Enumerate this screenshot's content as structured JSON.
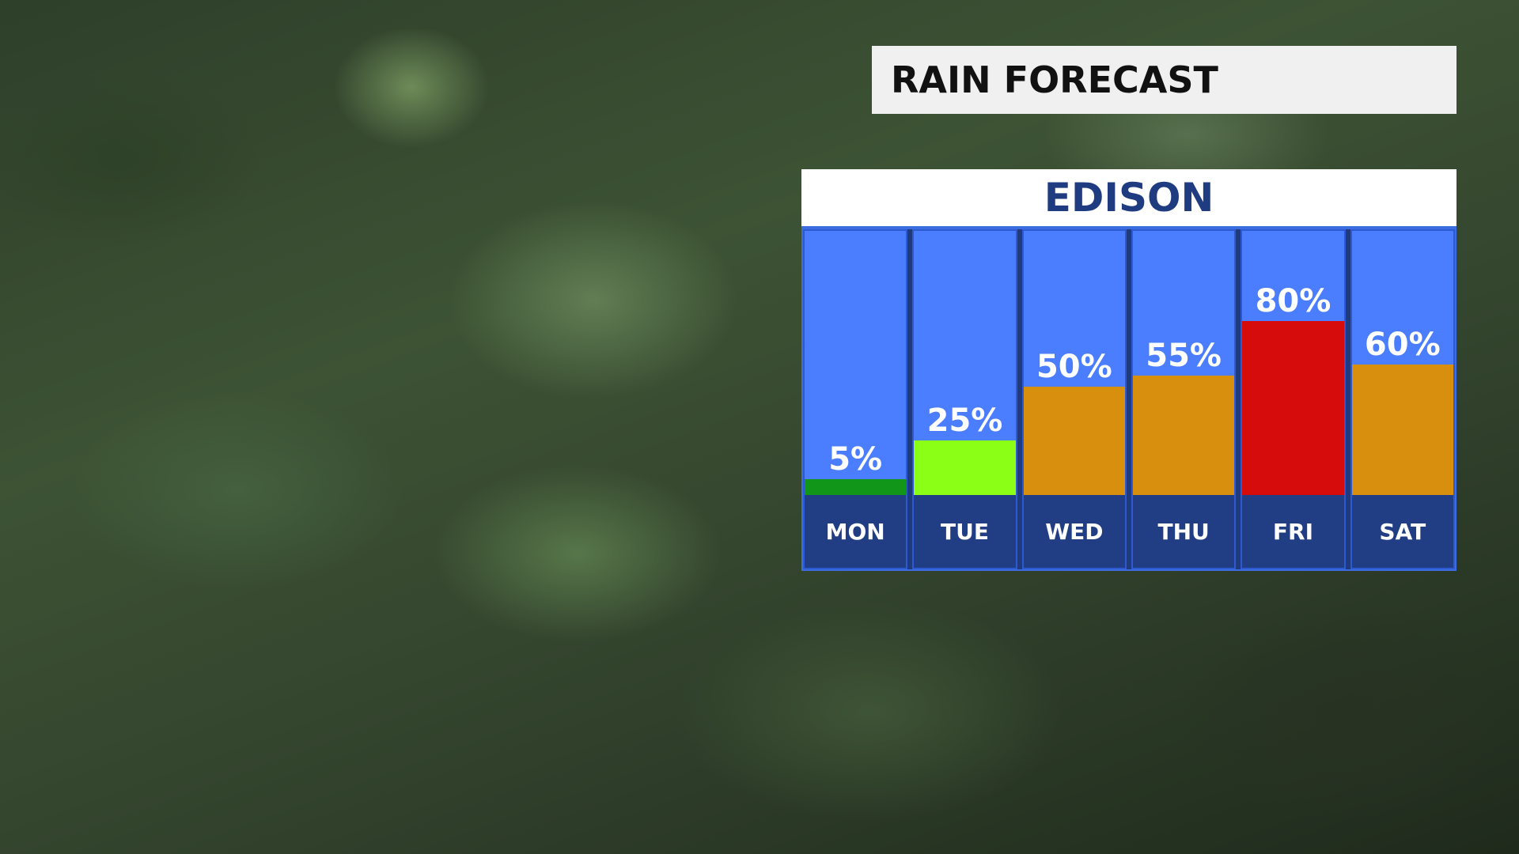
{
  "title": "RAIN FORECAST",
  "chart_data": {
    "type": "bar",
    "title": "EDISON",
    "categories": [
      "MON",
      "TUE",
      "WED",
      "THU",
      "FRI",
      "SAT"
    ],
    "values": [
      5,
      25,
      50,
      55,
      80,
      60
    ],
    "labels": [
      "5%",
      "25%",
      "50%",
      "55%",
      "80%",
      "60%"
    ],
    "unit": "%",
    "colors": [
      "#12961a",
      "#8cff17",
      "#d88f0e",
      "#d88f0e",
      "#d60c0c",
      "#d88f0e"
    ],
    "background_color": "#4a7eff",
    "label_band_color": "#213e85",
    "grid": false
  }
}
